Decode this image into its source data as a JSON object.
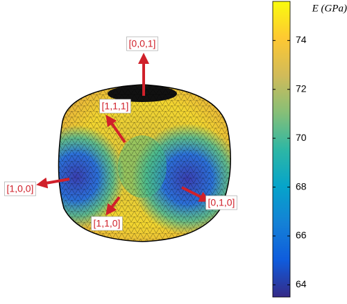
{
  "chart_data": {
    "type": "surface",
    "colorbar": {
      "label": "E (GPa)",
      "lim": [
        63.5,
        75.6
      ],
      "ticks": [
        64,
        66,
        68,
        70,
        72,
        74
      ],
      "colors": [
        "#352a87",
        "#0f5cdd",
        "#1481d6",
        "#06a4ca",
        "#2eb7a4",
        "#87bf77",
        "#d1bb59",
        "#fec832",
        "#f9fb0e"
      ]
    },
    "annotations": [
      "[0,0,1]",
      "[1,1,1]",
      "[1,0,0]",
      "[1,1,0]",
      "[0,1,0]"
    ],
    "annotation_color": "#d0202a"
  }
}
